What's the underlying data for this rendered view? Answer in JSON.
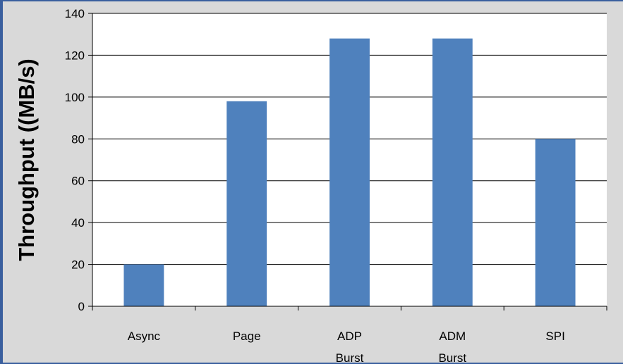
{
  "chart_data": {
    "type": "bar",
    "categories": [
      "Async",
      "Page",
      "ADP\nBurst",
      "ADM\nBurst",
      "SPI"
    ],
    "values": [
      20,
      98,
      128,
      128,
      80
    ],
    "title": "",
    "xlabel": "",
    "ylabel": "Throughput ((MB/s)",
    "ylim": [
      0,
      140
    ],
    "yticks": [
      0,
      20,
      40,
      60,
      80,
      100,
      120,
      140
    ],
    "grid": true,
    "legend": "none",
    "bar_color": "#4f81bd",
    "plot_background": "#ffffff",
    "gridline_color": "#000000"
  }
}
